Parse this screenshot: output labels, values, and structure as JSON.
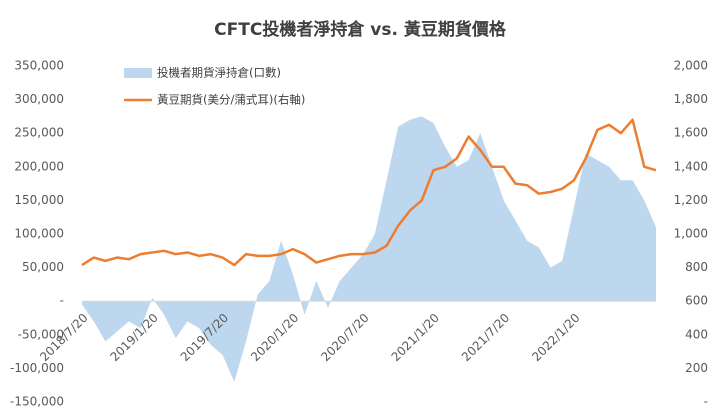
{
  "chart_data": {
    "type": "area-line",
    "title": "CFTC投機者淨持倉 vs. 黃豆期貨價格",
    "categories": [
      "2018/7/20",
      null,
      null,
      null,
      null,
      null,
      "2019/1/20",
      null,
      null,
      null,
      null,
      null,
      "2019/7/20",
      null,
      null,
      null,
      null,
      null,
      "2020/1/20",
      null,
      null,
      null,
      null,
      null,
      "2020/7/20",
      null,
      null,
      null,
      null,
      null,
      "2021/1/20",
      null,
      null,
      null,
      null,
      null,
      "2021/7/20",
      null,
      null,
      null,
      null,
      null,
      "2022/1/20",
      null,
      null,
      null,
      null,
      null,
      null,
      null
    ],
    "series": [
      {
        "name": "投機者期貨淨持倉(口數)",
        "type": "area",
        "color": "#bdd7ee",
        "values": [
          -5000,
          -30000,
          -60000,
          -45000,
          -30000,
          -40000,
          5000,
          -20000,
          -55000,
          -30000,
          -40000,
          -65000,
          -80000,
          -120000,
          -60000,
          10000,
          30000,
          90000,
          40000,
          -20000,
          30000,
          -10000,
          30000,
          50000,
          70000,
          100000,
          180000,
          260000,
          270000,
          275000,
          265000,
          230000,
          200000,
          210000,
          250000,
          200000,
          150000,
          120000,
          90000,
          80000,
          50000,
          60000,
          140000,
          220000,
          210000,
          200000,
          180000,
          180000,
          150000,
          110000
        ]
      },
      {
        "name": "黃豆期貨(美分/蒲式耳)(右軸)",
        "type": "line",
        "axis": "y2",
        "color": "#ed7d31",
        "values": [
          815,
          860,
          840,
          860,
          850,
          880,
          890,
          900,
          880,
          890,
          870,
          880,
          860,
          815,
          880,
          870,
          870,
          880,
          910,
          880,
          830,
          850,
          870,
          880,
          880,
          890,
          930,
          1050,
          1140,
          1200,
          1380,
          1400,
          1450,
          1580,
          1500,
          1400,
          1400,
          1300,
          1290,
          1240,
          1250,
          1270,
          1320,
          1450,
          1620,
          1650,
          1600,
          1680,
          1400,
          1380
        ]
      }
    ],
    "ylim": [
      -150000,
      350000
    ],
    "yticks": [
      {
        "value": -150000,
        "label": "-150,000"
      },
      {
        "value": -100000,
        "label": "-100,000"
      },
      {
        "value": -50000,
        "label": "-50,000"
      },
      {
        "value": 0,
        "label": "-"
      },
      {
        "value": 50000,
        "label": "50,000"
      },
      {
        "value": 100000,
        "label": "100,000"
      },
      {
        "value": 150000,
        "label": "150,000"
      },
      {
        "value": 200000,
        "label": "200,000"
      },
      {
        "value": 250000,
        "label": "250,000"
      },
      {
        "value": 300000,
        "label": "300,000"
      },
      {
        "value": 350000,
        "label": "350,000"
      }
    ],
    "y2lim": [
      0,
      2000
    ],
    "y2ticks": [
      {
        "value": 0,
        "label": "-"
      },
      200,
      400,
      600,
      800,
      {
        "value": 1000,
        "label": "1,000"
      },
      {
        "value": 1200,
        "label": "1,200"
      },
      {
        "value": 1400,
        "label": "1,400"
      },
      {
        "value": 1600,
        "label": "1,600"
      },
      {
        "value": 1800,
        "label": "1,800"
      },
      {
        "value": 2000,
        "label": "2,000"
      }
    ],
    "grid": false,
    "legend": "top-left"
  }
}
